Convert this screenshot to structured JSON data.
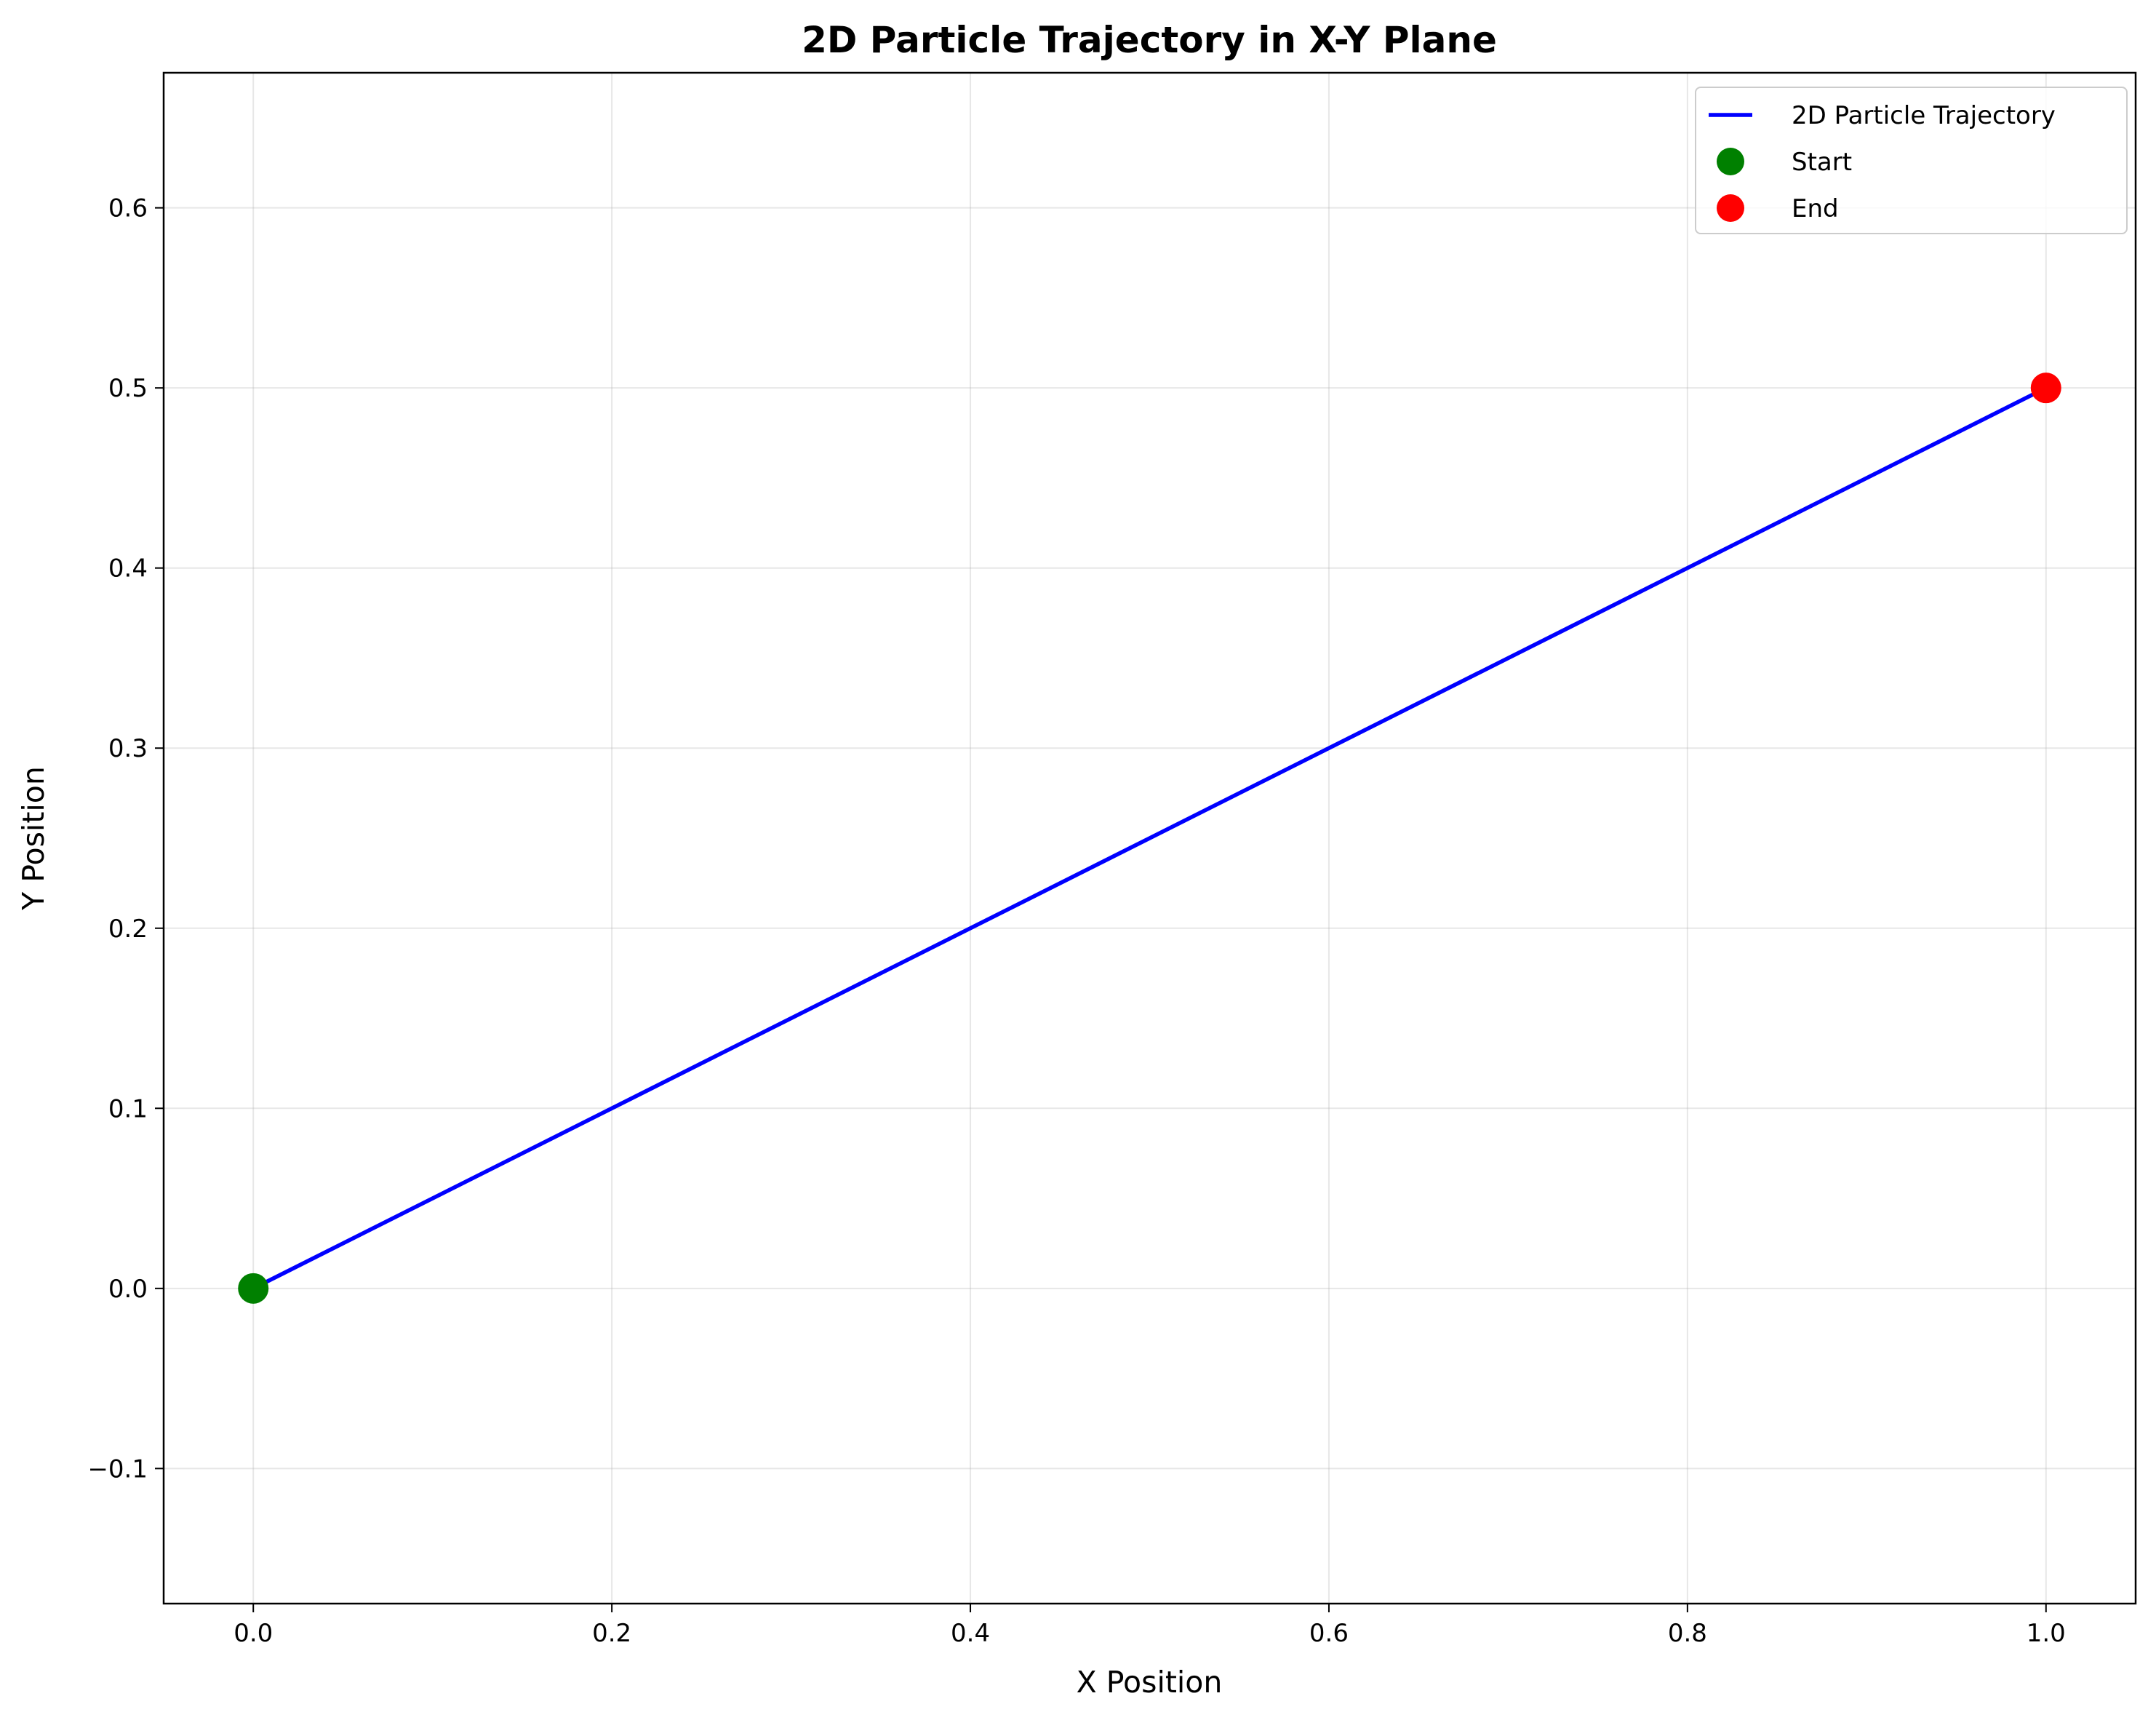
{
  "chart_data": {
    "type": "line",
    "title": "2D Particle Trajectory in X-Y Plane",
    "xlabel": "X Position",
    "ylabel": "Y Position",
    "xlim": [
      -0.05,
      1.05
    ],
    "ylim": [
      -0.175,
      0.675
    ],
    "xticks": [
      0.0,
      0.2,
      0.4,
      0.6,
      0.8,
      1.0
    ],
    "xtick_labels": [
      "0.0",
      "0.2",
      "0.4",
      "0.6",
      "0.8",
      "1.0"
    ],
    "yticks": [
      -0.1,
      0.0,
      0.1,
      0.2,
      0.3,
      0.4,
      0.5,
      0.6
    ],
    "ytick_labels": [
      "−0.1",
      "0.0",
      "0.1",
      "0.2",
      "0.3",
      "0.4",
      "0.5",
      "0.6"
    ],
    "grid": true,
    "legend_position": "top-right",
    "series": [
      {
        "name": "2D Particle Trajectory",
        "kind": "line",
        "color": "#0000ff",
        "x": [
          0.0,
          1.0
        ],
        "y": [
          0.0,
          0.5
        ]
      },
      {
        "name": "Start",
        "kind": "scatter",
        "color": "#008000",
        "x": [
          0.0
        ],
        "y": [
          0.0
        ]
      },
      {
        "name": "End",
        "kind": "scatter",
        "color": "#ff0000",
        "x": [
          1.0
        ],
        "y": [
          0.5
        ]
      }
    ]
  }
}
